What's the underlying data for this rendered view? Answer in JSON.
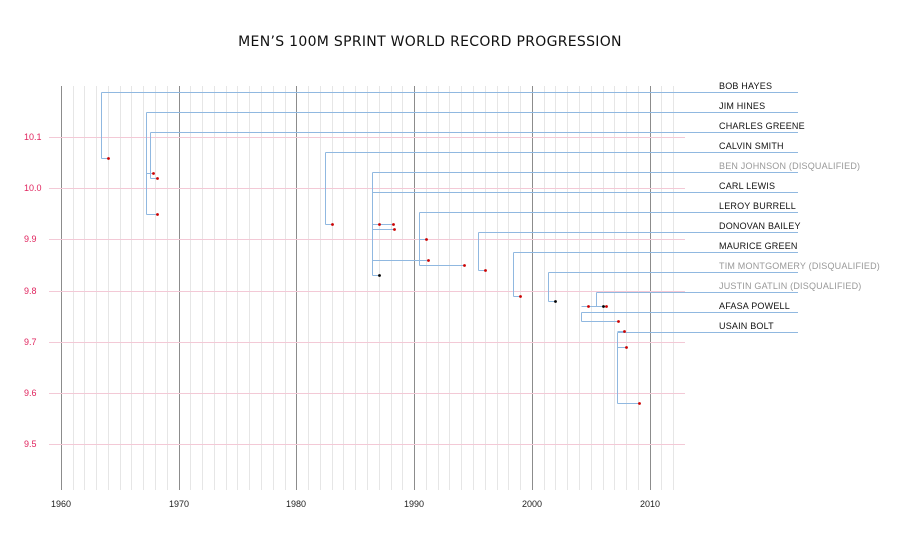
{
  "chart_data": {
    "type": "scatter",
    "title": "MEN’S 100M SPRINT WORLD RECORD PROGRESSION",
    "xlabel": "",
    "ylabel": "",
    "xlim": [
      1959,
      2013
    ],
    "ylim": [
      9.41,
      10.2
    ],
    "x_ticks": [
      "1960",
      "1970",
      "1980",
      "1990",
      "2000",
      "2010"
    ],
    "y_ticks": [
      "10.1",
      "10.0",
      "9.9",
      "9.8",
      "9.7",
      "9.6",
      "9.5"
    ],
    "disqualified_suffix": "(DISQUALIFIED)",
    "colors": {
      "record_point": "#cc0000",
      "disqualified_point": "#000000",
      "connector": "#90b8e0",
      "year_line_major": "#8c8c8c",
      "year_line_minor": "#e6e6e6",
      "value_line": "#f3c9d6",
      "y_tick_label": "#e0245e",
      "disqualified_text": "#999999"
    },
    "series": [
      {
        "name": "BOB HAYES",
        "disqualified": false,
        "points": [
          {
            "x": 1964.0,
            "y": 10.06
          }
        ]
      },
      {
        "name": "JIM HINES",
        "disqualified": false,
        "points": [
          {
            "x": 1967.8,
            "y": 10.03
          },
          {
            "x": 1968.2,
            "y": 9.95
          }
        ]
      },
      {
        "name": "CHARLES GREENE",
        "disqualified": false,
        "points": [
          {
            "x": 1968.2,
            "y": 10.02
          }
        ]
      },
      {
        "name": "CALVIN SMITH",
        "disqualified": false,
        "points": [
          {
            "x": 1983.0,
            "y": 9.93
          }
        ]
      },
      {
        "name": "BEN JOHNSON",
        "disqualified": true,
        "points": [
          {
            "x": 1987.0,
            "y": 9.83
          }
        ]
      },
      {
        "name": "CARL LEWIS",
        "disqualified": false,
        "points": [
          {
            "x": 1987.0,
            "y": 9.93
          },
          {
            "x": 1988.2,
            "y": 9.93
          },
          {
            "x": 1988.3,
            "y": 9.92
          },
          {
            "x": 1991.2,
            "y": 9.86
          }
        ]
      },
      {
        "name": "LEROY BURRELL",
        "disqualified": false,
        "points": [
          {
            "x": 1991.0,
            "y": 9.9
          },
          {
            "x": 1994.2,
            "y": 9.85
          }
        ]
      },
      {
        "name": "DONOVAN BAILEY",
        "disqualified": false,
        "points": [
          {
            "x": 1996.0,
            "y": 9.84
          }
        ]
      },
      {
        "name": "MAURICE GREEN",
        "disqualified": false,
        "points": [
          {
            "x": 1999.0,
            "y": 9.79
          }
        ]
      },
      {
        "name": "TIM MONTGOMERY",
        "disqualified": true,
        "points": [
          {
            "x": 2002.0,
            "y": 9.78
          }
        ]
      },
      {
        "name": "JUSTIN GATLIN",
        "disqualified": true,
        "points": [
          {
            "x": 2006.0,
            "y": 9.77
          }
        ]
      },
      {
        "name": "AFASA POWELL",
        "disqualified": false,
        "points": [
          {
            "x": 2004.8,
            "y": 9.77
          },
          {
            "x": 2006.3,
            "y": 9.77
          },
          {
            "x": 2007.3,
            "y": 9.74
          }
        ]
      },
      {
        "name": "USAIN BOLT",
        "disqualified": false,
        "points": [
          {
            "x": 2007.8,
            "y": 9.72
          },
          {
            "x": 2008.0,
            "y": 9.69
          },
          {
            "x": 2009.1,
            "y": 9.58
          }
        ]
      }
    ]
  }
}
